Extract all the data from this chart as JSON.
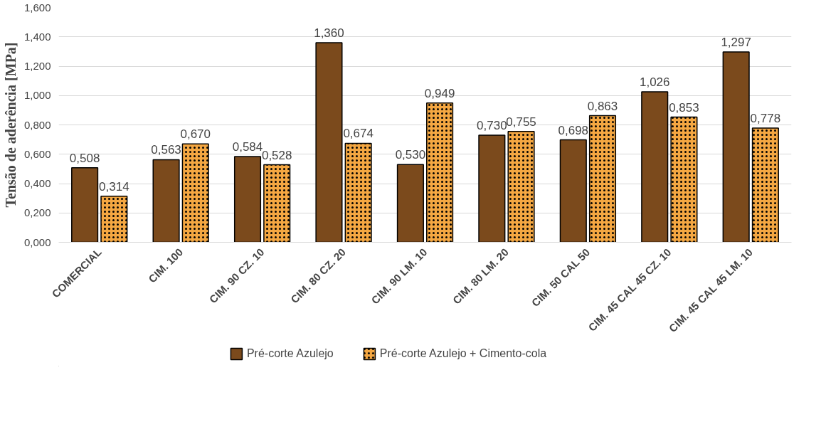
{
  "chart_data": {
    "type": "bar",
    "ylabel": "Tensão de aderência [MPa]",
    "categories": [
      "COMERCIAL",
      "CIM. 100",
      "CIM. 90 CZ. 10",
      "CIM. 80 CZ. 20",
      "CIM. 90 LM. 10",
      "CIM. 80 LM. 20",
      "CIM. 50 CAL 50",
      "CIM. 45 CAL 45 CZ. 10",
      "CIM. 45 CAL 45 LM. 10"
    ],
    "series": [
      {
        "name": "Pré-corte Azulejo",
        "color": "#7b4a1c",
        "values": [
          0.508,
          0.563,
          0.584,
          1.36,
          0.53,
          0.73,
          0.698,
          1.026,
          1.297
        ],
        "value_labels": [
          "0,508",
          "0,563",
          "0,584",
          "1,360",
          "0,530",
          "0,730",
          "0,698",
          "1,026",
          "1,297"
        ]
      },
      {
        "name": "Pré-corte Azulejo + Cimento-cola",
        "color": "#f4a742",
        "values": [
          0.314,
          0.67,
          0.528,
          0.674,
          0.949,
          0.755,
          0.863,
          0.853,
          0.778
        ],
        "value_labels": [
          "0,314",
          "0,670",
          "0,528",
          "0,674",
          "0,949",
          "0,755",
          "0,863",
          "0,853",
          "0,778"
        ]
      }
    ],
    "ylim": [
      0,
      1.6
    ],
    "yticks": [
      {
        "value": 0,
        "label": "0,000"
      },
      {
        "value": 0.2,
        "label": "0,200"
      },
      {
        "value": 0.4,
        "label": "0,400"
      },
      {
        "value": 0.6,
        "label": "0,600"
      },
      {
        "value": 0.8,
        "label": "0,800"
      },
      {
        "value": 1.0,
        "label": "1,000"
      },
      {
        "value": 1.2,
        "label": "1,200"
      },
      {
        "value": 1.4,
        "label": "1,400"
      },
      {
        "value": 1.6,
        "label": "1,600"
      }
    ],
    "grid": "y",
    "legend": "bottom"
  }
}
